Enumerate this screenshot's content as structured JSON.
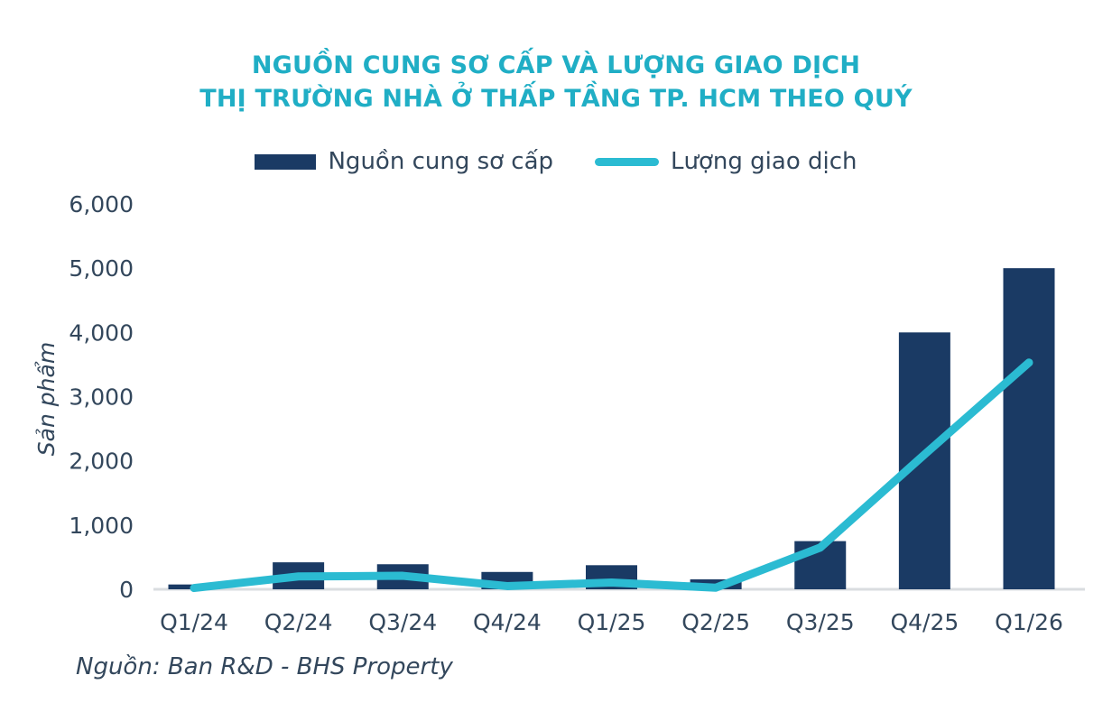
{
  "title": {
    "line1": "NGUỒN CUNG SƠ CẤP VÀ LƯỢNG GIAO DỊCH",
    "line2": "THỊ TRƯỜNG NHÀ Ở THẤP TẦNG TP. HCM THEO QUÝ"
  },
  "legend": {
    "supply_label": "Nguồn cung sơ cấp",
    "transactions_label": "Lượng giao dịch"
  },
  "source_note": "Nguồn: Ban R&D - BHS Property",
  "colors": {
    "title_teal": "#20AEC5",
    "bar_navy": "#1A3A64",
    "line_cyan": "#2BBBD2",
    "axis_text": "#33475C",
    "axis_line": "#DADDE0"
  },
  "chart_data": {
    "type": "bar",
    "subtype": "bar-and-line-combo",
    "title": "NGUỒN CUNG SƠ CẤP VÀ LƯỢNG GIAO DỊCH THỊ TRƯỜNG NHÀ Ở THẤP TẦNG TP. HCM THEO QUÝ",
    "categories": [
      "Q1/24",
      "Q2/24",
      "Q3/24",
      "Q4/24",
      "Q1/25",
      "Q2/25",
      "Q3/25",
      "Q4/25",
      "Q1/26"
    ],
    "series": [
      {
        "name": "Nguồn cung sơ cấp",
        "type": "bar",
        "color": "#1A3A64",
        "values": [
          75,
          420,
          390,
          270,
          375,
          155,
          750,
          4000,
          5000
        ]
      },
      {
        "name": "Lượng giao dịch",
        "type": "line",
        "color": "#2BBBD2",
        "values": [
          20,
          200,
          210,
          50,
          105,
          25,
          650,
          2100,
          3530
        ]
      }
    ],
    "xlabel": "",
    "ylabel": "Sản phẩm",
    "ylim": [
      0,
      6000
    ],
    "yticks": [
      0,
      1000,
      2000,
      3000,
      4000,
      5000,
      6000
    ],
    "ytick_labels": [
      "0",
      "1,000",
      "2,000",
      "3,000",
      "4,000",
      "5,000",
      "6,000"
    ],
    "grid": false,
    "legend_position": "top"
  }
}
